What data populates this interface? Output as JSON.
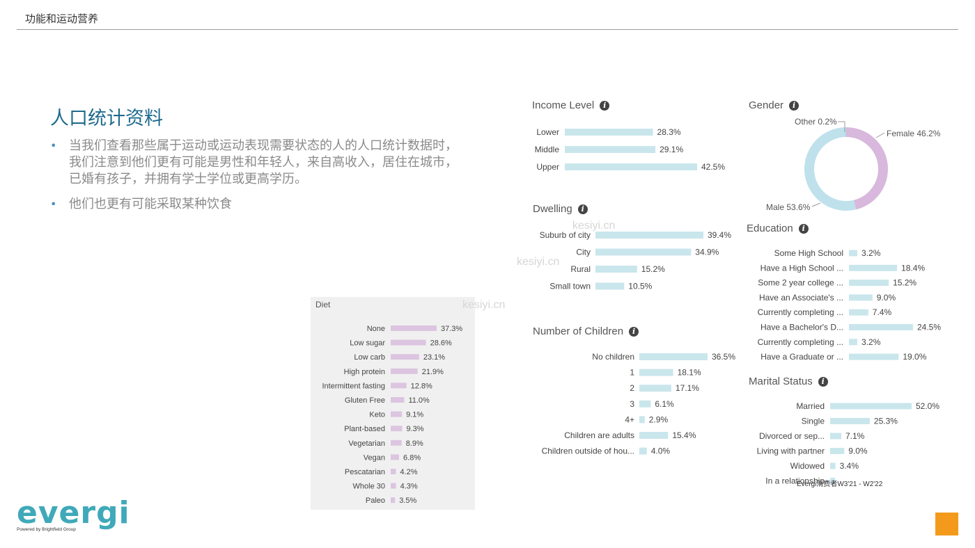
{
  "header": {
    "title": "功能和运动营养"
  },
  "slide": {
    "headline": "人口统计资料",
    "bullets": [
      "当我们查看那些属于运动或运动表现需要状态的人的人口统计数据时，我们注意到他们更有可能是男性和年轻人，来自高收入，居住在城市，已婚有孩子，并拥有学士学位或更高学历。",
      "他们也更有可能采取某种饮食"
    ]
  },
  "info_icon": "info-icon",
  "colors": {
    "bar_teal": "#c9e6ec",
    "bar_teal_light": "#ddf0f3",
    "bar_purple": "#dcc5e0",
    "donut_female": "#d8b8dc",
    "donut_male": "#bfe1ec",
    "headline": "#1f6a8e",
    "orange": "#f39a1c",
    "logo": "#3fa9b9"
  },
  "footnote": "Evergi消费者W3'21 - W2'22",
  "logo": {
    "word": "evergi",
    "tagline": "Powered by Brightfield Group"
  },
  "watermark": "kesiyi.cn",
  "chart_data": [
    {
      "id": "income",
      "type": "bar",
      "orientation": "horizontal",
      "title": "Income Level",
      "categories": [
        "Lower",
        "Middle",
        "Upper"
      ],
      "values": [
        28.3,
        29.1,
        42.5
      ],
      "value_labels": [
        "28.3%",
        "29.1%",
        "42.5%"
      ]
    },
    {
      "id": "dwelling",
      "type": "bar",
      "orientation": "horizontal",
      "title": "Dwelling",
      "categories": [
        "Suburb of city",
        "City",
        "Rural",
        "Small town"
      ],
      "values": [
        39.4,
        34.9,
        15.2,
        10.5
      ],
      "value_labels": [
        "39.4%",
        "34.9%",
        "15.2%",
        "10.5%"
      ]
    },
    {
      "id": "children",
      "type": "bar",
      "orientation": "horizontal",
      "title": "Number of Children",
      "categories": [
        "No children",
        "1",
        "2",
        "3",
        "4+",
        "Children are adults",
        "Children outside of hou..."
      ],
      "values": [
        36.5,
        18.1,
        17.1,
        6.1,
        2.9,
        15.4,
        4.0
      ],
      "value_labels": [
        "36.5%",
        "18.1%",
        "17.1%",
        "6.1%",
        "2.9%",
        "15.4%",
        "4.0%"
      ]
    },
    {
      "id": "gender",
      "type": "pie",
      "title": "Gender",
      "donut": true,
      "categories": [
        "Female",
        "Male",
        "Other"
      ],
      "values": [
        46.2,
        53.6,
        0.2
      ],
      "labels": [
        "Female 46.2%",
        "Male 53.6%",
        "Other 0.2%"
      ]
    },
    {
      "id": "education",
      "type": "bar",
      "orientation": "horizontal",
      "title": "Education",
      "categories": [
        "Some High School",
        "Have a High School ...",
        "Some 2 year college ...",
        "Have an Associate's ...",
        "Currently completing ...",
        "Have a Bachelor's D...",
        "Currently completing ...",
        "Have a Graduate or ..."
      ],
      "values": [
        3.2,
        18.4,
        15.2,
        9.0,
        7.4,
        24.5,
        3.2,
        19.0
      ],
      "value_labels": [
        "3.2%",
        "18.4%",
        "15.2%",
        "9.0%",
        "7.4%",
        "24.5%",
        "3.2%",
        "19.0%"
      ]
    },
    {
      "id": "marital",
      "type": "bar",
      "orientation": "horizontal",
      "title": "Marital Status",
      "categories": [
        "Married",
        "Single",
        "Divorced or sep...",
        "Living with partner",
        "Widowed",
        "In a relationship"
      ],
      "values": [
        52.0,
        25.3,
        7.1,
        9.0,
        3.4,
        3.2
      ],
      "value_labels": [
        "52.0%",
        "25.3%",
        "7.1%",
        "9.0%",
        "3.4%",
        ""
      ]
    },
    {
      "id": "diet",
      "type": "bar",
      "orientation": "horizontal",
      "title": "Diet",
      "categories": [
        "None",
        "Low sugar",
        "Low carb",
        "High protein",
        "Intermittent fasting",
        "Gluten Free",
        "Keto",
        "Plant-based",
        "Vegetarian",
        "Vegan",
        "Pescatarian",
        "Whole 30",
        "Paleo"
      ],
      "values": [
        37.3,
        28.6,
        23.1,
        21.9,
        12.8,
        11.0,
        9.1,
        9.3,
        8.9,
        6.8,
        4.2,
        4.3,
        3.5
      ],
      "value_labels": [
        "37.3%",
        "28.6%",
        "23.1%",
        "21.9%",
        "12.8%",
        "11.0%",
        "9.1%",
        "9.3%",
        "8.9%",
        "6.8%",
        "4.2%",
        "4.3%",
        "3.5%"
      ]
    }
  ]
}
